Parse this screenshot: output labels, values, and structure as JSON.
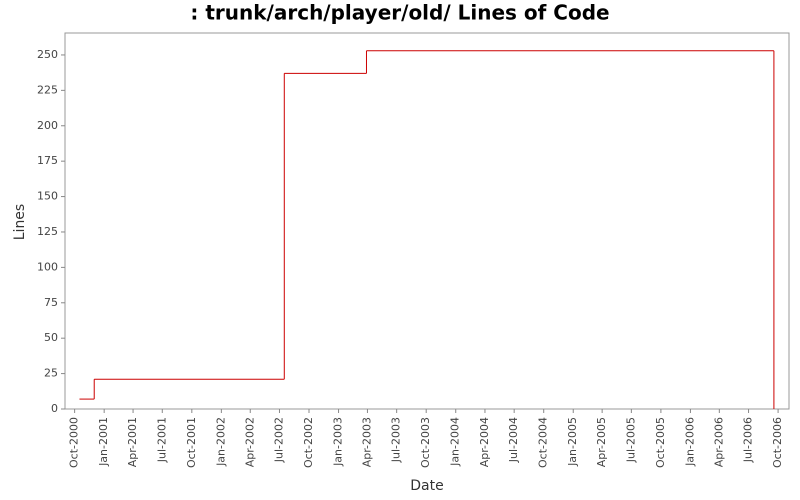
{
  "chart_data": {
    "type": "step",
    "title": ": trunk/arch/player/old/ Lines of Code",
    "x_label": "Date",
    "y_label": "Lines",
    "x": [
      "2000-10-16",
      "2000-12-01",
      "2002-07-16",
      "2003-03-29",
      "2006-09-18"
    ],
    "series": [
      {
        "name": "Lines",
        "color": "#cc0000",
        "values": [
          7,
          21,
          237,
          253,
          0
        ]
      }
    ],
    "xlim": [
      "2000-09-01",
      "2006-11-04"
    ],
    "xticks": [
      {
        "value": "2000-10-01",
        "label": "Oct-2000"
      },
      {
        "value": "2001-01-01",
        "label": "Jan-2001"
      },
      {
        "value": "2001-04-01",
        "label": "Apr-2001"
      },
      {
        "value": "2001-07-01",
        "label": "Jul-2001"
      },
      {
        "value": "2001-10-01",
        "label": "Oct-2001"
      },
      {
        "value": "2002-01-01",
        "label": "Jan-2002"
      },
      {
        "value": "2002-04-01",
        "label": "Apr-2002"
      },
      {
        "value": "2002-07-01",
        "label": "Jul-2002"
      },
      {
        "value": "2002-10-01",
        "label": "Oct-2002"
      },
      {
        "value": "2003-01-01",
        "label": "Jan-2003"
      },
      {
        "value": "2003-04-01",
        "label": "Apr-2003"
      },
      {
        "value": "2003-07-01",
        "label": "Jul-2003"
      },
      {
        "value": "2003-10-01",
        "label": "Oct-2003"
      },
      {
        "value": "2004-01-01",
        "label": "Jan-2004"
      },
      {
        "value": "2004-04-01",
        "label": "Apr-2004"
      },
      {
        "value": "2004-07-01",
        "label": "Jul-2004"
      },
      {
        "value": "2004-10-01",
        "label": "Oct-2004"
      },
      {
        "value": "2005-01-01",
        "label": "Jan-2005"
      },
      {
        "value": "2005-04-01",
        "label": "Apr-2005"
      },
      {
        "value": "2005-07-01",
        "label": "Jul-2005"
      },
      {
        "value": "2005-10-01",
        "label": "Oct-2005"
      },
      {
        "value": "2006-01-01",
        "label": "Jan-2006"
      },
      {
        "value": "2006-04-01",
        "label": "Apr-2006"
      },
      {
        "value": "2006-07-01",
        "label": "Jul-2006"
      },
      {
        "value": "2006-10-01",
        "label": "Oct-2006"
      }
    ],
    "ylim": [
      0,
      265.5
    ],
    "yticks": [
      0,
      25,
      50,
      75,
      100,
      125,
      150,
      175,
      200,
      225,
      250
    ],
    "grid": false
  }
}
